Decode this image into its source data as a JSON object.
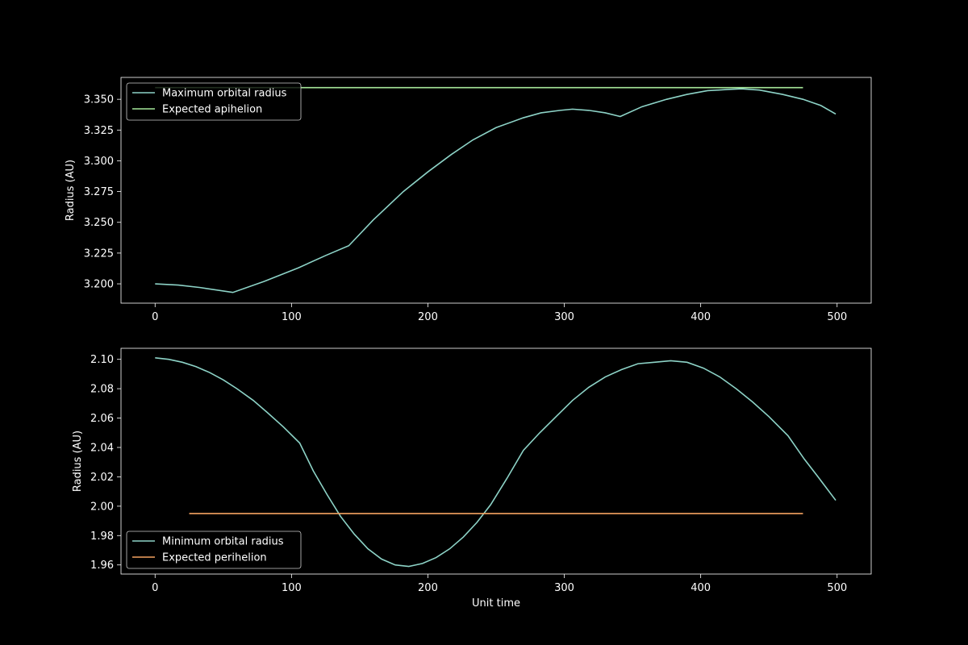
{
  "figure": {
    "background": "#000000",
    "foreground": "#ffffff"
  },
  "chart_data": [
    {
      "type": "line",
      "title": "",
      "xlabel": "",
      "ylabel": "Radius (AU)",
      "xlim": [
        -25,
        525
      ],
      "ylim": [
        3.1843,
        3.3678
      ],
      "xticks": [
        0,
        100,
        200,
        300,
        400,
        500
      ],
      "xtick_labels": [
        "0",
        "100",
        "200",
        "300",
        "400",
        "500"
      ],
      "yticks": [
        3.2,
        3.225,
        3.25,
        3.275,
        3.3,
        3.325,
        3.35
      ],
      "ytick_labels": [
        "3.200",
        "3.225",
        "3.250",
        "3.275",
        "3.300",
        "3.325",
        "3.350"
      ],
      "grid": false,
      "legend_position": "upper-left",
      "series": [
        {
          "name": "Maximum orbital radius",
          "color": "#8dd3c7",
          "x": [
            0,
            17,
            33,
            57,
            80,
            105,
            125,
            142,
            160,
            182,
            200,
            217,
            233,
            250,
            270,
            283,
            297,
            306,
            318,
            330,
            341,
            357,
            375,
            390,
            405,
            420,
            430,
            443,
            460,
            475,
            488,
            499
          ],
          "y": [
            3.2,
            3.199,
            3.197,
            3.193,
            3.202,
            3.213,
            3.223,
            3.231,
            3.252,
            3.275,
            3.291,
            3.305,
            3.317,
            3.327,
            3.335,
            3.339,
            3.341,
            3.342,
            3.341,
            3.339,
            3.336,
            3.344,
            3.35,
            3.354,
            3.357,
            3.358,
            3.3585,
            3.3575,
            3.354,
            3.35,
            3.345,
            3.338
          ]
        },
        {
          "name": "Expected apihelion",
          "color": "#a6e89a",
          "x": [
            0,
            475
          ],
          "y": [
            3.3595,
            3.3595
          ]
        }
      ]
    },
    {
      "type": "line",
      "title": "",
      "xlabel": "Unit time",
      "ylabel": "Radius (AU)",
      "xlim": [
        -25,
        525
      ],
      "ylim": [
        1.9538,
        2.1075
      ],
      "xticks": [
        0,
        100,
        200,
        300,
        400,
        500
      ],
      "xtick_labels": [
        "0",
        "100",
        "200",
        "300",
        "400",
        "500"
      ],
      "yticks": [
        1.96,
        1.98,
        2.0,
        2.02,
        2.04,
        2.06,
        2.08,
        2.1
      ],
      "ytick_labels": [
        "1.96",
        "1.98",
        "2.00",
        "2.02",
        "2.04",
        "2.06",
        "2.08",
        "2.10"
      ],
      "grid": false,
      "legend_position": "lower-left",
      "series": [
        {
          "name": "Minimum orbital radius",
          "color": "#8dd3c7",
          "x": [
            0,
            10,
            20,
            30,
            40,
            50,
            60,
            72,
            82,
            94,
            106,
            116,
            126,
            136,
            146,
            156,
            166,
            176,
            186,
            196,
            206,
            216,
            226,
            236,
            246,
            258,
            270,
            282,
            294,
            306,
            318,
            330,
            342,
            354,
            366,
            378,
            390,
            402,
            414,
            426,
            438,
            450,
            464,
            476,
            486,
            499
          ],
          "y": [
            2.101,
            2.1,
            2.098,
            2.095,
            2.091,
            2.086,
            2.08,
            2.072,
            2.064,
            2.054,
            2.043,
            2.024,
            2.008,
            1.993,
            1.981,
            1.971,
            1.964,
            1.96,
            1.959,
            1.961,
            1.965,
            1.971,
            1.979,
            1.989,
            2.001,
            2.019,
            2.038,
            2.05,
            2.061,
            2.072,
            2.081,
            2.088,
            2.093,
            2.097,
            2.098,
            2.099,
            2.098,
            2.094,
            2.088,
            2.08,
            2.071,
            2.061,
            2.048,
            2.032,
            2.02,
            2.004
          ]
        },
        {
          "name": "Expected perihelion",
          "color": "#f4a261",
          "x": [
            25,
            475
          ],
          "y": [
            1.995,
            1.995
          ]
        }
      ]
    }
  ]
}
